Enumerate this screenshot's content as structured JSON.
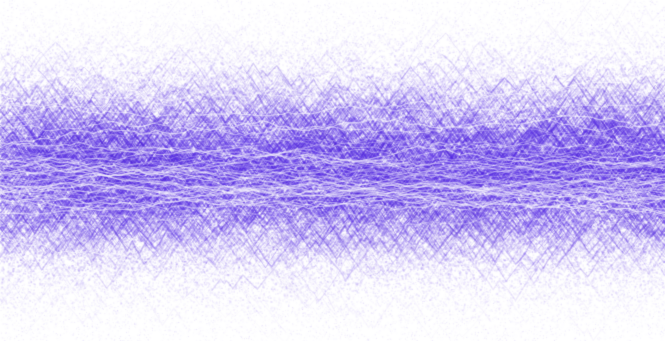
{
  "image": {
    "kind": "abstract-noise-texture",
    "palette": {
      "background": "#ffffff",
      "ink": "#5a30e6",
      "ink_light": "#a48cf2",
      "ink_dark": "#4a1fd6"
    }
  }
}
